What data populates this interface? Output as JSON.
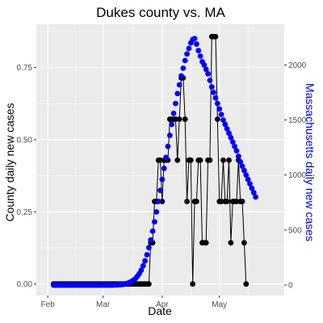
{
  "chart_data": {
    "type": "line",
    "title": "Dukes county vs. MA",
    "xlabel": "Date",
    "ylabel": "County daily new cases",
    "y2label": "Massachusetts daily new cases",
    "x_axis": {
      "type": "date",
      "range": [
        "2020-01-26",
        "2020-06-04"
      ],
      "ticks": [
        {
          "value": "2020-02-01",
          "label": "Feb"
        },
        {
          "value": "2020-03-01",
          "label": "Mar"
        },
        {
          "value": "2020-04-01",
          "label": "Apr"
        },
        {
          "value": "2020-05-01",
          "label": "May"
        }
      ]
    },
    "y_axis": {
      "range": [
        -0.04,
        0.9
      ],
      "ticks": [
        {
          "value": 0,
          "label": "0.00"
        },
        {
          "value": 0.25,
          "label": "0.25"
        },
        {
          "value": 0.5,
          "label": "0.50"
        },
        {
          "value": 0.75,
          "label": "0.75"
        }
      ]
    },
    "y2_axis": {
      "range": [
        -95,
        2370
      ],
      "ticks": [
        {
          "value": 0,
          "label": "0"
        },
        {
          "value": 500,
          "label": "500"
        },
        {
          "value": 1000,
          "label": "1000"
        },
        {
          "value": 1500,
          "label": "1500"
        },
        {
          "value": 2000,
          "label": "2000"
        }
      ]
    },
    "grid": true,
    "colors": {
      "panel_bg": "#ebebeb",
      "grid_major": "#ffffff",
      "grid_minor": "#f5f5f5",
      "county": "#000000",
      "ma": "#0000ff",
      "ma_axis_label": "#0000cd",
      "tick_label": "#4d4d4d"
    },
    "start_date": "2020-02-04",
    "series": [
      {
        "name": "County",
        "axis": "left",
        "values": [
          0,
          0,
          0,
          0,
          0,
          0,
          0,
          0,
          0,
          0,
          0,
          0,
          0,
          0,
          0,
          0,
          0,
          0,
          0,
          0,
          0,
          0,
          0,
          0,
          0,
          0,
          0,
          0,
          0,
          0,
          0,
          0,
          0,
          0,
          0,
          0,
          0,
          0,
          0,
          0,
          0,
          0,
          0,
          0,
          0,
          0,
          0,
          0,
          0,
          0,
          0,
          0.143,
          0.143,
          0.286,
          0.286,
          0.429,
          0.429,
          0.286,
          0.429,
          0.429,
          0.429,
          0.571,
          0.571,
          0.571,
          0.571,
          0.429,
          0.571,
          0.714,
          0.714,
          0.571,
          0.286,
          0.429,
          0.429,
          0,
          0.286,
          0.286,
          0.429,
          0.429,
          0.143,
          0.143,
          0.143,
          0.429,
          0.429,
          0.857,
          0.857,
          0.857,
          0.571,
          0.286,
          0.286,
          0.429,
          0.286,
          0.286,
          0.429,
          0.143,
          0.286,
          0.286,
          0.286,
          0.429,
          0.286,
          0.286,
          0.143,
          0
        ]
      },
      {
        "name": "MA",
        "axis": "right",
        "values": [
          0,
          0,
          0,
          0,
          0,
          0,
          0,
          0,
          0,
          0,
          0,
          0,
          0,
          0,
          0,
          0,
          0,
          0,
          0,
          0,
          0,
          0,
          0,
          0,
          0,
          0,
          0,
          0,
          0,
          0,
          0,
          0,
          1,
          1,
          2,
          3,
          5,
          8,
          12,
          18,
          25,
          34,
          45,
          60,
          80,
          105,
          135,
          175,
          220,
          275,
          340,
          410,
          490,
          575,
          665,
          760,
          860,
          960,
          1060,
          1160,
          1260,
          1360,
          1460,
          1560,
          1650,
          1740,
          1820,
          1900,
          1970,
          2040,
          2100,
          2150,
          2200,
          2230,
          2240,
          2190,
          2130,
          2080,
          2030,
          2000,
          1960,
          1920,
          1860,
          1800,
          1750,
          1700,
          1650,
          1600,
          1550,
          1500,
          1460,
          1420,
          1380,
          1340,
          1300,
          1260,
          1220,
          1170,
          1120,
          1080,
          1040,
          1000,
          960,
          920,
          880,
          840,
          800
        ]
      }
    ]
  }
}
